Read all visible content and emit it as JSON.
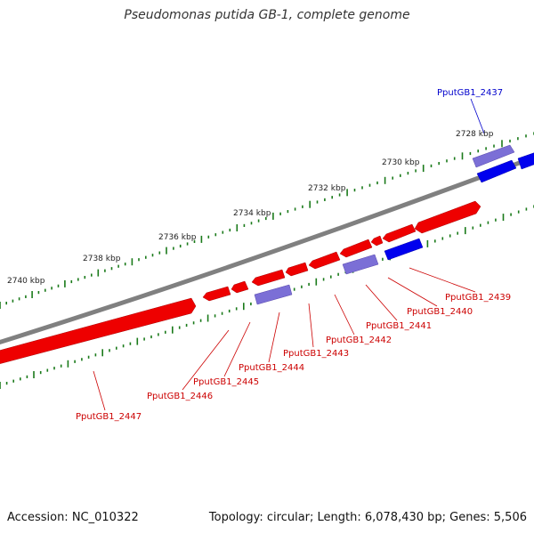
{
  "title": "Pseudomonas putida GB-1, complete genome",
  "colors": {
    "forward_gene": "#0000ee",
    "forward_gene_light": "#7b6fd6",
    "reverse_gene": "#ee0000",
    "backbone": "#808080",
    "tick": "#1a7a1a",
    "label_forward": "#0000cc",
    "label_reverse": "#cc0000"
  },
  "scale": {
    "kbp_labels": [
      "2728 kbp",
      "2730 kbp",
      "2732 kbp",
      "2734 kbp",
      "2736 kbp",
      "2738 kbp",
      "2740 kbp"
    ]
  },
  "genes": [
    {
      "label": "PputGB1_2437",
      "strand": "forward"
    },
    {
      "label": "PputGB1_2439",
      "strand": "forward"
    },
    {
      "label": "PputGB1_2440",
      "strand": "reverse"
    },
    {
      "label": "PputGB1_2441",
      "strand": "forward"
    },
    {
      "label": "PputGB1_2442",
      "strand": "reverse"
    },
    {
      "label": "PputGB1_2443",
      "strand": "reverse"
    },
    {
      "label": "PputGB1_2444",
      "strand": "forward"
    },
    {
      "label": "PputGB1_2445",
      "strand": "reverse"
    },
    {
      "label": "PputGB1_2446",
      "strand": "reverse"
    },
    {
      "label": "PputGB1_2447",
      "strand": "reverse"
    }
  ],
  "footer": {
    "accession": "Accession: NC_010322",
    "stats": "Topology: circular; Length: 6,078,430 bp; Genes: 5,506"
  }
}
